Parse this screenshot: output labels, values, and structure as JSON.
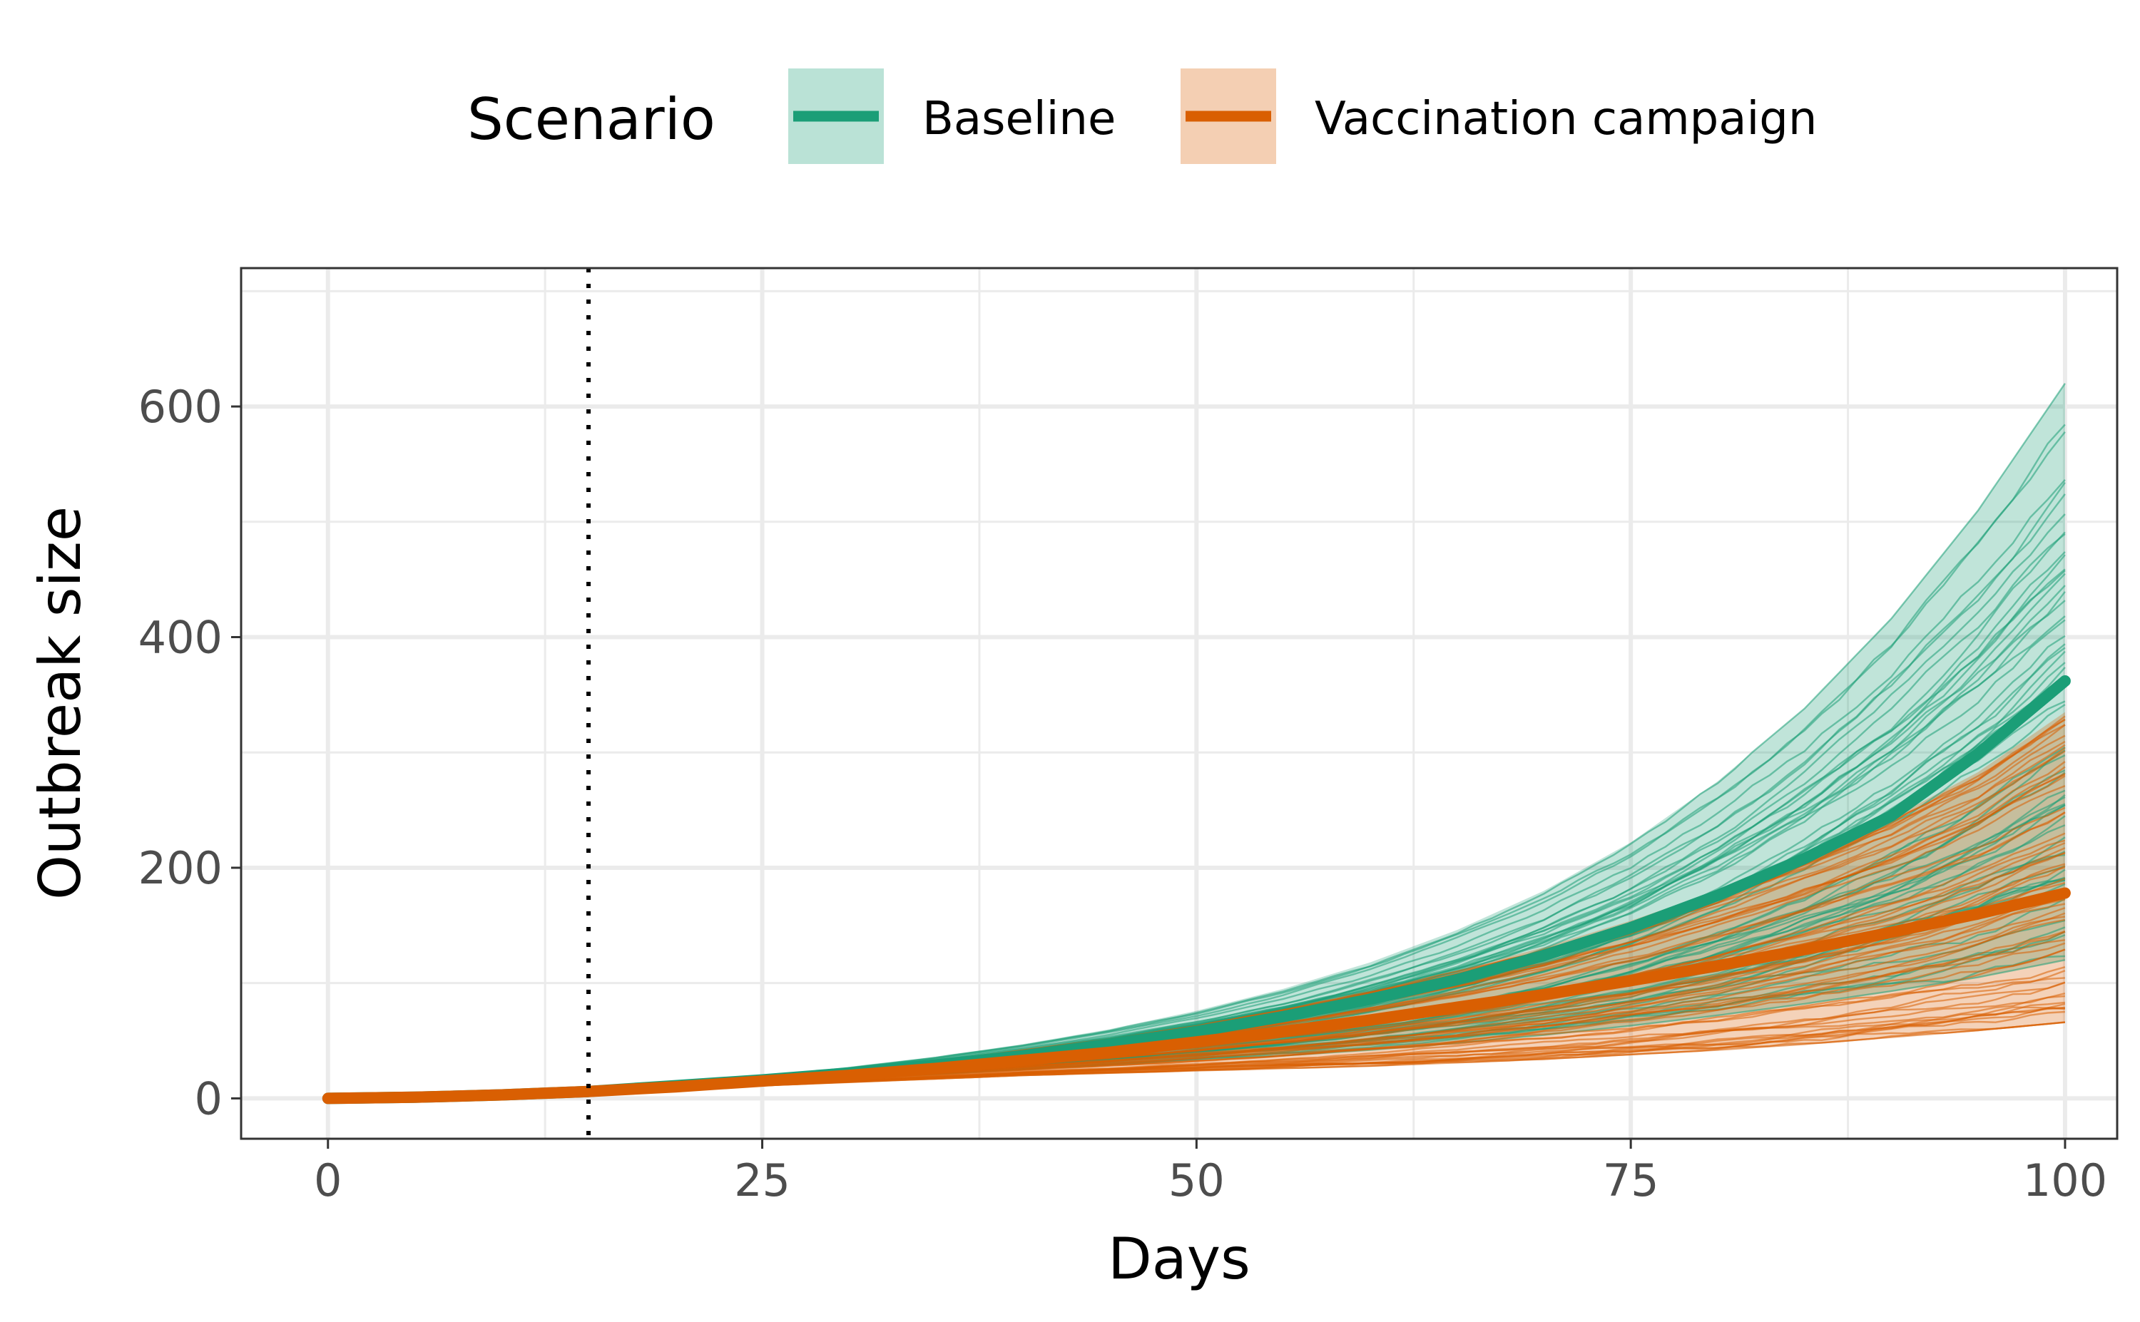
{
  "chart_data": {
    "type": "line",
    "legend": {
      "title": "Scenario",
      "position": "top"
    },
    "xlabel": "Days",
    "ylabel": "Outbreak size",
    "xlim": [
      -5,
      103
    ],
    "ylim": [
      -35,
      720
    ],
    "x_ticks": [
      0,
      25,
      50,
      75,
      100
    ],
    "x_tick_labels": [
      "0",
      "25",
      "50",
      "75",
      "100"
    ],
    "y_ticks": [
      0,
      200,
      400,
      600
    ],
    "y_tick_labels": [
      "0",
      "200",
      "400",
      "600"
    ],
    "grid": true,
    "reference_line": {
      "x": 15,
      "style": "dotted",
      "color": "#000000"
    },
    "series": [
      {
        "name": "Baseline",
        "color": "#1b9e77",
        "x": [
          0,
          5,
          10,
          15,
          20,
          25,
          30,
          35,
          40,
          45,
          50,
          55,
          60,
          65,
          70,
          75,
          80,
          85,
          90,
          95,
          100
        ],
        "median": [
          0,
          1,
          3,
          6,
          11,
          16,
          22,
          29,
          37,
          47,
          58,
          71,
          86,
          103,
          124,
          148,
          176,
          208,
          245,
          299,
          362
        ],
        "lower": [
          0,
          1,
          3,
          6,
          9,
          13,
          17,
          21,
          25,
          29,
          33,
          37,
          42,
          48,
          55,
          63,
          72,
          82,
          93,
          105,
          120
        ],
        "upper": [
          0,
          1,
          3,
          7,
          13,
          19,
          27,
          36,
          47,
          60,
          76,
          95,
          118,
          146,
          180,
          222,
          275,
          338,
          416,
          510,
          620
        ],
        "trajectory_count": 60,
        "trajectory_end_range": [
          120,
          690
        ]
      },
      {
        "name": "Vaccination campaign",
        "color": "#d95f02",
        "x": [
          0,
          5,
          10,
          15,
          20,
          25,
          30,
          35,
          40,
          45,
          50,
          55,
          60,
          65,
          70,
          75,
          80,
          85,
          90,
          95,
          100
        ],
        "median": [
          0,
          1,
          3,
          6,
          10,
          15,
          20,
          26,
          33,
          40,
          49,
          58,
          68,
          79,
          90,
          102,
          115,
          129,
          144,
          160,
          178
        ],
        "lower": [
          0,
          1,
          3,
          6,
          8,
          11,
          14,
          17,
          20,
          22,
          24,
          26,
          28,
          31,
          34,
          38,
          42,
          47,
          53,
          59,
          66
        ],
        "upper": [
          0,
          1,
          3,
          7,
          12,
          18,
          25,
          33,
          42,
          52,
          64,
          78,
          94,
          111,
          131,
          154,
          180,
          210,
          243,
          283,
          335
        ],
        "trajectory_count": 60,
        "trajectory_end_range": [
          38,
          340
        ]
      }
    ]
  }
}
